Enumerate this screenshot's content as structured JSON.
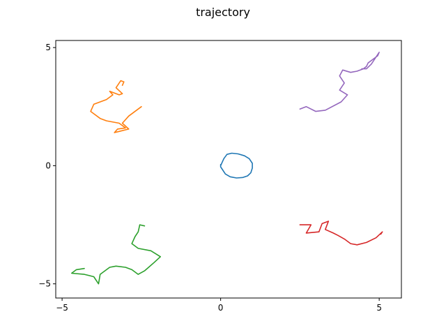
{
  "chart_data": {
    "type": "line",
    "title": "trajectory",
    "xlabel": "",
    "ylabel": "",
    "xlim": [
      -5.2,
      5.7
    ],
    "ylim": [
      -5.6,
      5.3
    ],
    "xticks": [
      -5,
      0,
      5
    ],
    "yticks": [
      -5,
      0,
      5
    ],
    "grid": false,
    "series": [
      {
        "color": "#1f77b4",
        "x": [
          0.0,
          0.1,
          0.2,
          0.35,
          0.55,
          0.75,
          0.9,
          1.0,
          1.0,
          0.95,
          0.85,
          0.7,
          0.5,
          0.3,
          0.15,
          0.05,
          0.0,
          0.0
        ],
        "y": [
          0.0,
          0.3,
          0.48,
          0.53,
          0.5,
          0.42,
          0.3,
          0.1,
          -0.1,
          -0.3,
          -0.43,
          -0.5,
          -0.52,
          -0.47,
          -0.35,
          -0.15,
          -0.05,
          0.05
        ]
      },
      {
        "color": "#ff7f0e",
        "x": [
          -2.5,
          -2.9,
          -3.1,
          -2.9,
          -3.2,
          -3.35,
          -3.25,
          -3.0,
          -3.2,
          -3.6,
          -3.8,
          -4.1,
          -4.0,
          -3.6,
          -3.4,
          -3.5,
          -3.2,
          -3.1,
          -3.3,
          -3.15,
          -3.05,
          -3.1
        ],
        "y": [
          2.5,
          2.1,
          1.8,
          1.55,
          1.45,
          1.4,
          1.55,
          1.6,
          1.8,
          1.9,
          2.0,
          2.3,
          2.6,
          2.8,
          3.0,
          3.15,
          3.0,
          3.05,
          3.3,
          3.6,
          3.55,
          3.4
        ]
      },
      {
        "color": "#2ca02c",
        "x": [
          -2.4,
          -2.55,
          -2.6,
          -2.7,
          -2.8,
          -2.6,
          -2.2,
          -1.9,
          -2.1,
          -2.4,
          -2.6,
          -2.8,
          -3.0,
          -3.3,
          -3.5,
          -3.8,
          -3.85,
          -4.0,
          -4.3,
          -4.7,
          -4.55,
          -4.3
        ],
        "y": [
          -2.55,
          -2.5,
          -2.8,
          -3.0,
          -3.3,
          -3.5,
          -3.6,
          -3.85,
          -4.1,
          -4.45,
          -4.6,
          -4.4,
          -4.3,
          -4.25,
          -4.3,
          -4.6,
          -5.0,
          -4.7,
          -4.6,
          -4.55,
          -4.4,
          -4.35
        ]
      },
      {
        "color": "#d62728",
        "x": [
          2.5,
          2.85,
          2.7,
          3.1,
          3.2,
          3.4,
          3.3,
          3.55,
          3.7,
          3.9,
          4.1,
          4.3,
          4.6,
          4.9,
          5.1,
          5.05
        ],
        "y": [
          -2.5,
          -2.5,
          -2.85,
          -2.8,
          -2.45,
          -2.35,
          -2.7,
          -2.85,
          -2.95,
          -3.1,
          -3.3,
          -3.35,
          -3.25,
          -3.05,
          -2.8,
          -2.9
        ]
      },
      {
        "color": "#9467bd",
        "x": [
          2.5,
          2.7,
          3.0,
          3.3,
          3.8,
          4.0,
          3.75,
          3.9,
          3.75,
          3.85,
          4.1,
          4.3,
          4.5,
          4.6,
          4.65,
          4.8,
          4.95,
          5.0,
          4.9,
          4.75,
          4.6,
          4.45
        ],
        "y": [
          2.4,
          2.5,
          2.3,
          2.35,
          2.7,
          3.0,
          3.2,
          3.5,
          3.8,
          4.05,
          3.95,
          4.0,
          4.1,
          4.2,
          4.35,
          4.5,
          4.65,
          4.8,
          4.6,
          4.3,
          4.1,
          4.1
        ]
      }
    ]
  }
}
